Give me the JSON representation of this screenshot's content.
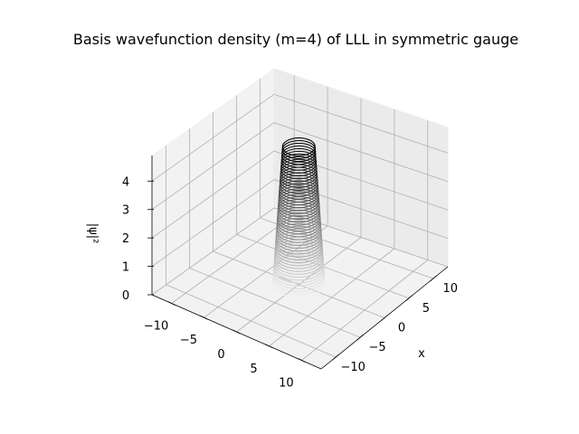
{
  "chart_data": {
    "type": "surface-contour-3d",
    "title": "Basis wavefunction density (m=4) of LLL in symmetric gauge",
    "xlabel": "x",
    "ylabel": "",
    "zlabel": "|ψ|²",
    "xlim": [
      -13,
      13
    ],
    "ylim": [
      -13,
      13
    ],
    "zlim": [
      0,
      4.9
    ],
    "x_ticks": [
      -10,
      -5,
      0,
      5,
      10
    ],
    "y_ticks": [
      -10,
      -5,
      0,
      5,
      10
    ],
    "z_ticks": [
      0,
      1,
      2,
      3,
      4
    ],
    "x_tick_labels": [
      "−10",
      "−5",
      "0",
      "5",
      "10"
    ],
    "y_tick_labels": [
      "−10",
      "−5",
      "0",
      "5",
      "10"
    ],
    "z_tick_labels": [
      "0",
      "1",
      "2",
      "3",
      "4"
    ],
    "grid": true,
    "colormap": "Greys",
    "levels": {
      "z_min": 0.05,
      "z_max": 4.85,
      "count": 50,
      "radius_bottom": 3.2,
      "radius_top": 2.0
    }
  }
}
